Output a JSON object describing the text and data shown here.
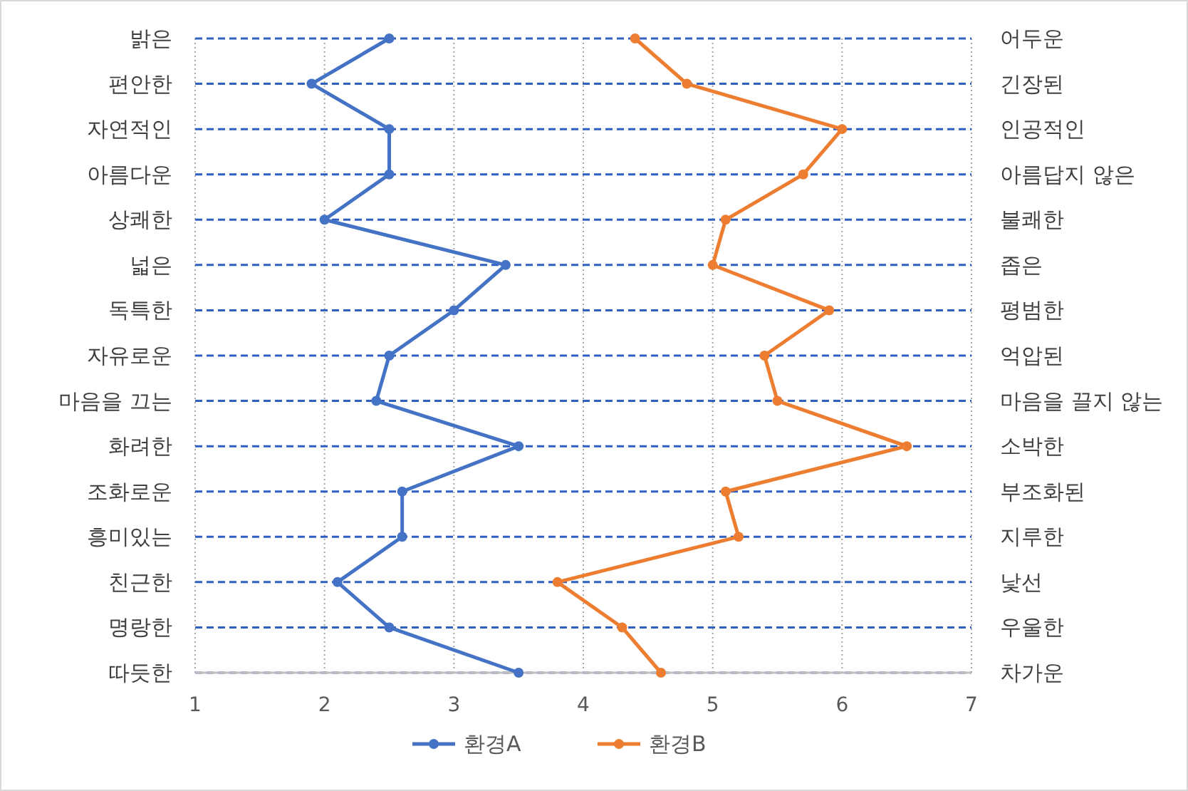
{
  "chart_data": {
    "type": "line",
    "orientation": "horizontal",
    "categories": [
      "밝은",
      "편안한",
      "자연적인",
      "아름다운",
      "상쾌한",
      "넓은",
      "독특한",
      "자유로운",
      "마음을 끄는",
      "화려한",
      "조화로운",
      "흥미있는",
      "친근한",
      "명랑한",
      "따듯한"
    ],
    "y2_categories": [
      "어두운",
      "긴장된",
      "인공적인",
      "아름답지 않은",
      "불쾌한",
      "좁은",
      "평범한",
      "억압된",
      "마음을 끌지 않는",
      "소박한",
      "부조화된",
      "지루한",
      "낯선",
      "우울한",
      "차가운"
    ],
    "series": [
      {
        "name": "환경A",
        "color": "#4472c4",
        "values": [
          2.5,
          1.9,
          2.5,
          2.5,
          2.0,
          3.4,
          3.0,
          2.5,
          2.4,
          3.5,
          2.6,
          2.6,
          2.1,
          2.5,
          3.5
        ]
      },
      {
        "name": "환경B",
        "color": "#ed7d31",
        "values": [
          4.4,
          4.8,
          6.0,
          5.7,
          5.1,
          5.0,
          5.9,
          5.4,
          5.5,
          6.5,
          5.1,
          5.2,
          3.8,
          4.3,
          4.6
        ]
      }
    ],
    "xlim": [
      1,
      7
    ],
    "xticks": [
      1,
      2,
      3,
      4,
      5,
      6,
      7
    ],
    "grid": true,
    "legend": "bottom",
    "marker": "circle",
    "line_style": "solid"
  }
}
